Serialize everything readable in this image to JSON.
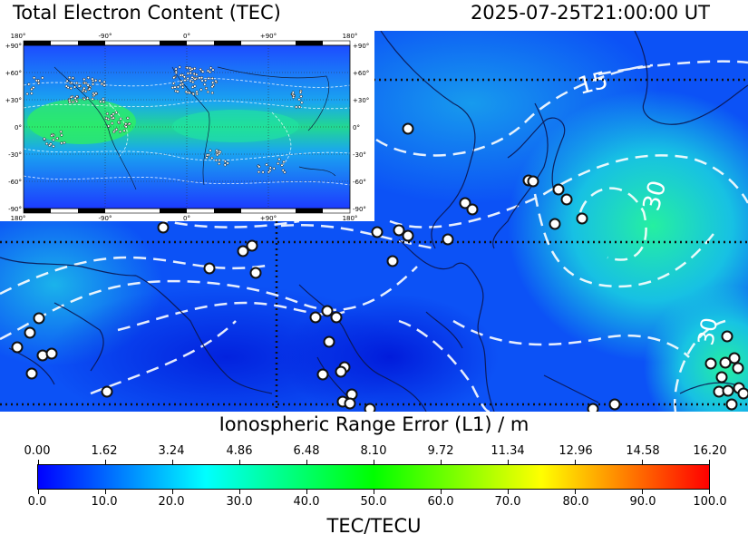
{
  "header": {
    "title": "Total Electron Content (TEC)",
    "timestamp": "2025-07-25T21:00:00 UT"
  },
  "map": {
    "contour_labels": [
      "15",
      "30",
      "30"
    ],
    "inset": {
      "top_ticks": [
        "180°",
        "-90°",
        "0°",
        "+90°",
        "180°"
      ],
      "bottom_ticks": [
        "180°",
        "-90°",
        "0°",
        "+90°",
        "180°"
      ],
      "left_ticks": [
        "+90°",
        "+60°",
        "+30°",
        "0°",
        "-30°",
        "-60°",
        "-90°"
      ],
      "right_ticks": [
        "+90°",
        "+60°",
        "+30°",
        "0°",
        "-30°",
        "-60°",
        "-90°"
      ]
    }
  },
  "range_error": {
    "label": "Ionospheric Range Error (L1) / m",
    "ticks": [
      "0.00",
      "1.62",
      "3.24",
      "4.86",
      "6.48",
      "8.10",
      "9.72",
      "11.34",
      "12.96",
      "14.58",
      "16.20"
    ]
  },
  "colorbar": {
    "label": "TEC/TECU",
    "ticks": [
      "0.0",
      "10.0",
      "20.0",
      "30.0",
      "40.0",
      "50.0",
      "60.0",
      "70.0",
      "80.0",
      "90.0",
      "100.0"
    ],
    "min": 0,
    "max": 100,
    "colors": [
      "#0000ff",
      "#00ffff",
      "#00ff00",
      "#ffff00",
      "#ff0000"
    ]
  }
}
